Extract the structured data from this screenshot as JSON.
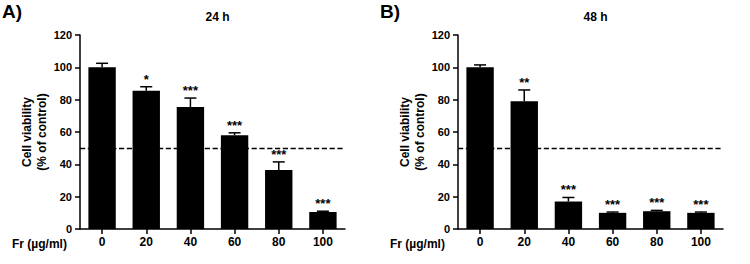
{
  "chart_data": [
    {
      "type": "bar",
      "title": "24 h",
      "annotations": [
        {
          "text": "A)"
        }
      ],
      "xlabel": "Fr (µg/ml)",
      "ylabel": "Cell viability\n(% of control)",
      "categories": [
        "0",
        "20",
        "40",
        "60",
        "80",
        "100"
      ],
      "values": [
        100,
        85.5,
        75.5,
        58,
        36.5,
        10.5
      ],
      "errors": [
        2.5,
        2.5,
        5.5,
        1.5,
        5,
        0.5
      ],
      "significance": [
        null,
        "*",
        "***",
        "***",
        "***",
        "***"
      ],
      "reference_line": {
        "value": 50,
        "line_style": "dashed"
      },
      "color": "#000000",
      "ylim": [
        0,
        120
      ],
      "yticks": [
        0,
        20,
        40,
        60,
        80,
        100,
        120
      ],
      "grid": false
    },
    {
      "type": "bar",
      "title": "48 h",
      "annotations": [
        {
          "text": "B)"
        }
      ],
      "xlabel": "Fr (µg/ml)",
      "ylabel": "Cell viability\n(% of control)",
      "categories": [
        "0",
        "20",
        "40",
        "60",
        "80",
        "100"
      ],
      "values": [
        100,
        79,
        17,
        10,
        11,
        10
      ],
      "errors": [
        1.5,
        7,
        2.5,
        0.5,
        0.5,
        0.5
      ],
      "significance": [
        null,
        "**",
        "***",
        "***",
        "***",
        "***"
      ],
      "reference_line": {
        "value": 50,
        "line_style": "dashed"
      },
      "color": "#000000",
      "ylim": [
        0,
        120
      ],
      "yticks": [
        0,
        20,
        40,
        60,
        80,
        100,
        120
      ],
      "grid": false
    }
  ]
}
